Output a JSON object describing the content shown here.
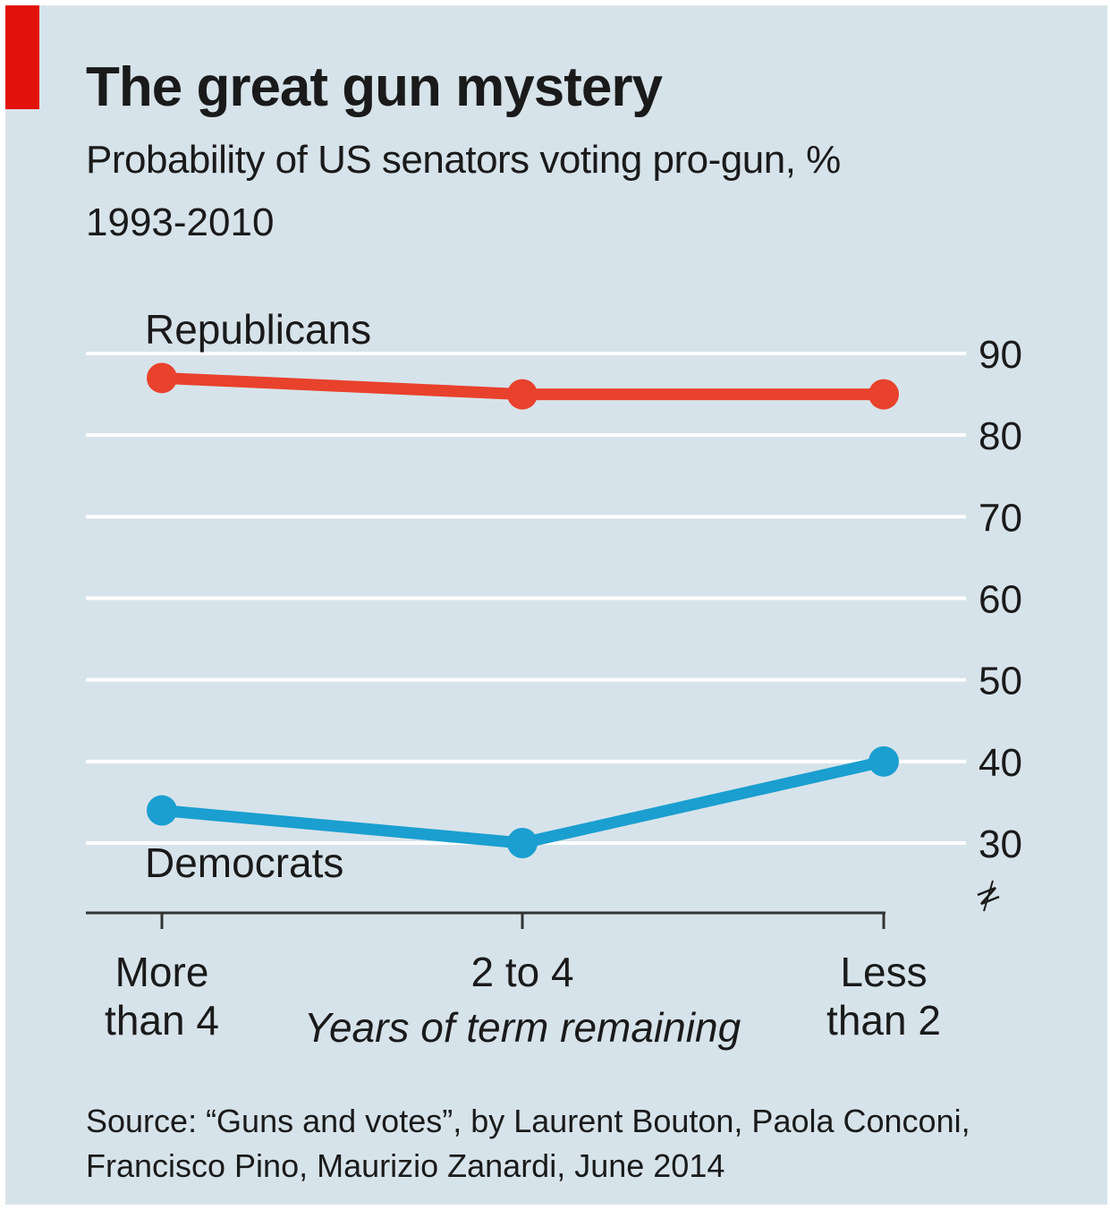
{
  "header": {
    "title": "The great gun mystery",
    "subtitle": "Probability of US senators voting pro-gun, %",
    "period": "1993-2010"
  },
  "source": {
    "line1": "Source: “Guns and votes”, by Laurent Bouton, Paola Conconi,",
    "line2": "Francisco Pino, Maurizio Zanardi, June 2014"
  },
  "chart_data": {
    "type": "line",
    "categories": [
      "More than 4",
      "2 to 4",
      "Less than 2"
    ],
    "category_labels": [
      [
        "More",
        "than 4"
      ],
      [
        "2 to 4"
      ],
      [
        "Less",
        "than 2"
      ]
    ],
    "xlabel": "Years of term remaining",
    "ylim": [
      30,
      90
    ],
    "yticks": [
      30,
      40,
      50,
      60,
      70,
      80,
      90
    ],
    "y_axis_position": "right",
    "y_axis_break": true,
    "grid": true,
    "series": [
      {
        "name": "Republicans",
        "values": [
          87,
          85,
          85
        ],
        "color": "#e8412c"
      },
      {
        "name": "Democrats",
        "values": [
          34,
          30,
          40
        ],
        "color": "#1a9fd0"
      }
    ]
  }
}
